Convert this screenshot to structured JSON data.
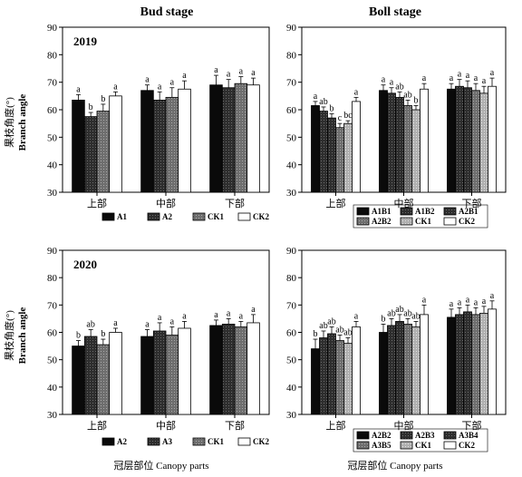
{
  "figure": {
    "col_titles": [
      "Bud stage",
      "Boll stage"
    ],
    "ylabel_cn": "果枝角度(°)",
    "ylabel_en": "Branch angle",
    "xlabel": "冠层部位 Canopy parts"
  },
  "colors": {
    "black": "#0a0a0a",
    "dark": "#3a3a3a",
    "gray": "#777777",
    "light": "#b5b5b5",
    "white": "#ffffff"
  },
  "chart_data": [
    {
      "type": "bar",
      "stage": "Bud stage",
      "year": "2019",
      "categories": [
        "上部",
        "中部",
        "下部"
      ],
      "ylim": [
        30,
        90
      ],
      "yticks": [
        30,
        40,
        50,
        60,
        70,
        80,
        90
      ],
      "series": [
        {
          "name": "A1",
          "pattern": "black",
          "values": [
            63.5,
            67,
            69
          ],
          "errors": [
            2,
            2,
            3.5
          ],
          "letters": [
            "a",
            "a",
            "a"
          ]
        },
        {
          "name": "A2",
          "pattern": "dark",
          "values": [
            57.5,
            63.5,
            68
          ],
          "errors": [
            1.5,
            3,
            3
          ],
          "letters": [
            "b",
            "a",
            "a"
          ]
        },
        {
          "name": "CK1",
          "pattern": "gray",
          "values": [
            59.5,
            64.5,
            69.5
          ],
          "errors": [
            2.5,
            3.5,
            2.5
          ],
          "letters": [
            "b",
            "a",
            "a"
          ]
        },
        {
          "name": "CK2",
          "pattern": "white",
          "values": [
            65,
            67.5,
            69
          ],
          "errors": [
            1.5,
            3,
            2.5
          ],
          "letters": [
            "a",
            "a",
            "a"
          ]
        }
      ]
    },
    {
      "type": "bar",
      "stage": "Boll stage",
      "year": "",
      "categories": [
        "上部",
        "中部",
        "下部"
      ],
      "ylim": [
        30,
        90
      ],
      "yticks": [
        30,
        40,
        50,
        60,
        70,
        80,
        90
      ],
      "series": [
        {
          "name": "A1B1",
          "pattern": "black",
          "values": [
            61.5,
            67,
            67.5
          ],
          "errors": [
            1.5,
            2,
            2
          ],
          "letters": [
            "a",
            "a",
            "a"
          ]
        },
        {
          "name": "A1B2",
          "pattern": "dark",
          "values": [
            59.5,
            66,
            68.5
          ],
          "errors": [
            1.5,
            2,
            2.5
          ],
          "letters": [
            "ab",
            "a",
            "a"
          ]
        },
        {
          "name": "A2B1",
          "pattern": "dark",
          "values": [
            57,
            64.5,
            68
          ],
          "errors": [
            1.5,
            2,
            2.5
          ],
          "letters": [
            "b",
            "ab",
            "a"
          ]
        },
        {
          "name": "A2B2",
          "pattern": "gray",
          "values": [
            53.5,
            61.5,
            67
          ],
          "errors": [
            1.5,
            2,
            2.5
          ],
          "letters": [
            "c",
            "ab",
            "a"
          ]
        },
        {
          "name": "CK1",
          "pattern": "light",
          "values": [
            55,
            60,
            66
          ],
          "errors": [
            1,
            1.5,
            2.5
          ],
          "letters": [
            "bc",
            "b",
            "a"
          ]
        },
        {
          "name": "CK2",
          "pattern": "white",
          "values": [
            63,
            67.5,
            68.5
          ],
          "errors": [
            1.5,
            2,
            3
          ],
          "letters": [
            "a",
            "a",
            "a"
          ]
        }
      ]
    },
    {
      "type": "bar",
      "stage": "Bud stage",
      "year": "2020",
      "categories": [
        "上部",
        "中部",
        "下部"
      ],
      "ylim": [
        30,
        90
      ],
      "yticks": [
        30,
        40,
        50,
        60,
        70,
        80,
        90
      ],
      "series": [
        {
          "name": "A2",
          "pattern": "black",
          "values": [
            55,
            58.5,
            62.5
          ],
          "errors": [
            2,
            2.5,
            2
          ],
          "letters": [
            "b",
            "a",
            "a"
          ]
        },
        {
          "name": "A3",
          "pattern": "dark",
          "values": [
            58.5,
            60.5,
            63
          ],
          "errors": [
            2.5,
            3,
            2
          ],
          "letters": [
            "ab",
            "a",
            "a"
          ]
        },
        {
          "name": "CK1",
          "pattern": "gray",
          "values": [
            55.5,
            59,
            62
          ],
          "errors": [
            2,
            3,
            2
          ],
          "letters": [
            "b",
            "a",
            "a"
          ]
        },
        {
          "name": "CK2",
          "pattern": "white",
          "values": [
            60,
            61.5,
            63.5
          ],
          "errors": [
            1.5,
            2.5,
            3
          ],
          "letters": [
            "a",
            "a",
            "a"
          ]
        }
      ]
    },
    {
      "type": "bar",
      "stage": "Boll stage",
      "year": "",
      "categories": [
        "上部",
        "中部",
        "下部"
      ],
      "ylim": [
        30,
        90
      ],
      "yticks": [
        30,
        40,
        50,
        60,
        70,
        80,
        90
      ],
      "series": [
        {
          "name": "A2B2",
          "pattern": "black",
          "values": [
            54,
            60,
            65.5
          ],
          "errors": [
            3.5,
            3,
            3
          ],
          "letters": [
            "b",
            "b",
            "a"
          ]
        },
        {
          "name": "A2B3",
          "pattern": "dark",
          "values": [
            58,
            62.5,
            66.5
          ],
          "errors": [
            2.5,
            2.5,
            2.5
          ],
          "letters": [
            "ab",
            "ab",
            "a"
          ]
        },
        {
          "name": "A3B4",
          "pattern": "dark",
          "values": [
            59.5,
            64,
            67.5
          ],
          "errors": [
            2.5,
            2.5,
            2.5
          ],
          "letters": [
            "ab",
            "ab",
            "a"
          ]
        },
        {
          "name": "A3B5",
          "pattern": "gray",
          "values": [
            57,
            63,
            66.5
          ],
          "errors": [
            2,
            2,
            2.5
          ],
          "letters": [
            "ab",
            "ab",
            "a"
          ]
        },
        {
          "name": "CK1",
          "pattern": "light",
          "values": [
            56,
            62,
            67
          ],
          "errors": [
            2,
            2,
            2.5
          ],
          "letters": [
            "ab",
            "ab",
            "a"
          ]
        },
        {
          "name": "CK2",
          "pattern": "white",
          "values": [
            62,
            66.5,
            68.5
          ],
          "errors": [
            2,
            3.5,
            3
          ],
          "letters": [
            "a",
            "a",
            "a"
          ]
        }
      ]
    }
  ]
}
